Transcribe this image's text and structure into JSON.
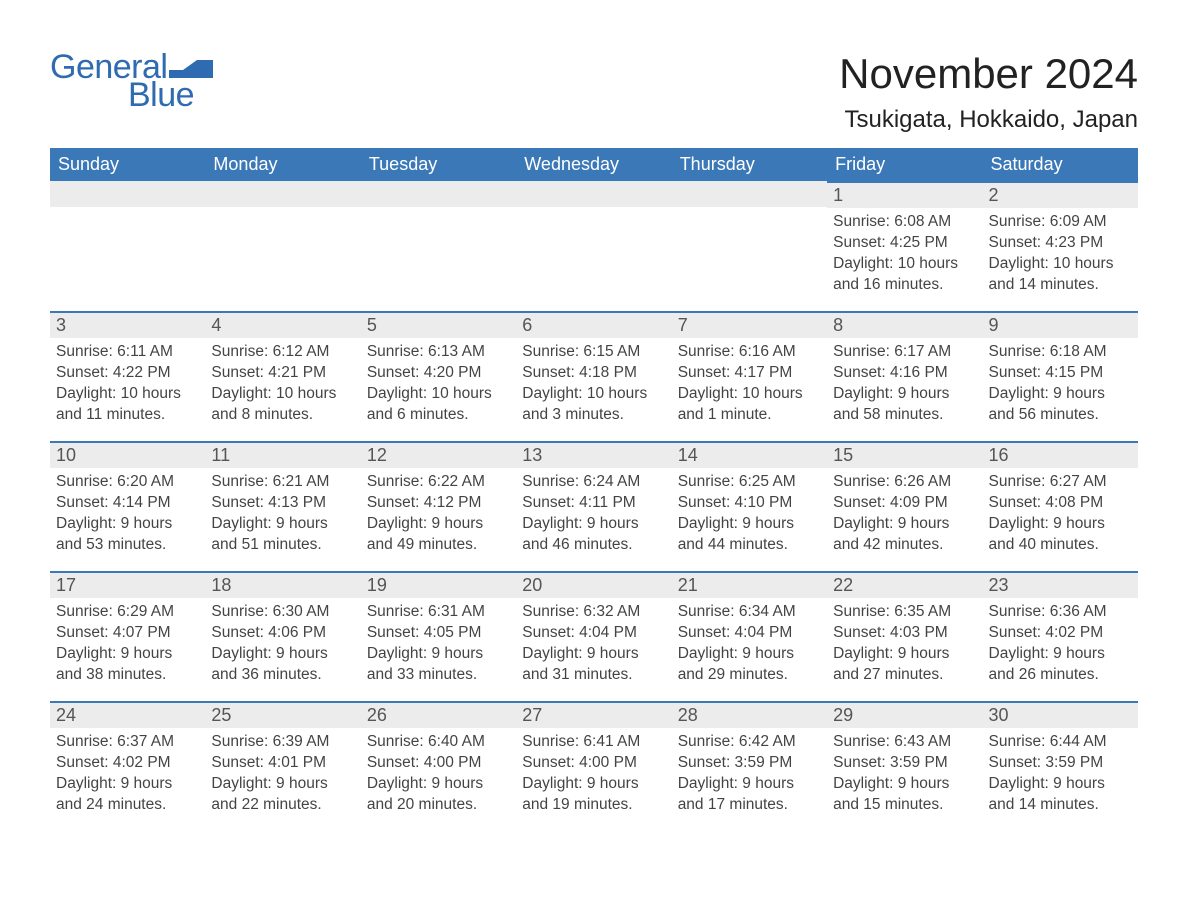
{
  "logo": {
    "text1": "General",
    "text2": "Blue"
  },
  "title": "November 2024",
  "location": "Tsukigata, Hokkaido, Japan",
  "colors": {
    "header_bg": "#3b78b8",
    "header_text": "#ffffff",
    "daynum_bg": "#ececec",
    "border_top": "#3b78b8",
    "logo_color": "#2e6bb0",
    "body_text": "#444444"
  },
  "weekdays": [
    "Sunday",
    "Monday",
    "Tuesday",
    "Wednesday",
    "Thursday",
    "Friday",
    "Saturday"
  ],
  "weeks": [
    [
      null,
      null,
      null,
      null,
      null,
      {
        "n": "1",
        "sr": "Sunrise: 6:08 AM",
        "ss": "Sunset: 4:25 PM",
        "d1": "Daylight: 10 hours",
        "d2": "and 16 minutes."
      },
      {
        "n": "2",
        "sr": "Sunrise: 6:09 AM",
        "ss": "Sunset: 4:23 PM",
        "d1": "Daylight: 10 hours",
        "d2": "and 14 minutes."
      }
    ],
    [
      {
        "n": "3",
        "sr": "Sunrise: 6:11 AM",
        "ss": "Sunset: 4:22 PM",
        "d1": "Daylight: 10 hours",
        "d2": "and 11 minutes."
      },
      {
        "n": "4",
        "sr": "Sunrise: 6:12 AM",
        "ss": "Sunset: 4:21 PM",
        "d1": "Daylight: 10 hours",
        "d2": "and 8 minutes."
      },
      {
        "n": "5",
        "sr": "Sunrise: 6:13 AM",
        "ss": "Sunset: 4:20 PM",
        "d1": "Daylight: 10 hours",
        "d2": "and 6 minutes."
      },
      {
        "n": "6",
        "sr": "Sunrise: 6:15 AM",
        "ss": "Sunset: 4:18 PM",
        "d1": "Daylight: 10 hours",
        "d2": "and 3 minutes."
      },
      {
        "n": "7",
        "sr": "Sunrise: 6:16 AM",
        "ss": "Sunset: 4:17 PM",
        "d1": "Daylight: 10 hours",
        "d2": "and 1 minute."
      },
      {
        "n": "8",
        "sr": "Sunrise: 6:17 AM",
        "ss": "Sunset: 4:16 PM",
        "d1": "Daylight: 9 hours",
        "d2": "and 58 minutes."
      },
      {
        "n": "9",
        "sr": "Sunrise: 6:18 AM",
        "ss": "Sunset: 4:15 PM",
        "d1": "Daylight: 9 hours",
        "d2": "and 56 minutes."
      }
    ],
    [
      {
        "n": "10",
        "sr": "Sunrise: 6:20 AM",
        "ss": "Sunset: 4:14 PM",
        "d1": "Daylight: 9 hours",
        "d2": "and 53 minutes."
      },
      {
        "n": "11",
        "sr": "Sunrise: 6:21 AM",
        "ss": "Sunset: 4:13 PM",
        "d1": "Daylight: 9 hours",
        "d2": "and 51 minutes."
      },
      {
        "n": "12",
        "sr": "Sunrise: 6:22 AM",
        "ss": "Sunset: 4:12 PM",
        "d1": "Daylight: 9 hours",
        "d2": "and 49 minutes."
      },
      {
        "n": "13",
        "sr": "Sunrise: 6:24 AM",
        "ss": "Sunset: 4:11 PM",
        "d1": "Daylight: 9 hours",
        "d2": "and 46 minutes."
      },
      {
        "n": "14",
        "sr": "Sunrise: 6:25 AM",
        "ss": "Sunset: 4:10 PM",
        "d1": "Daylight: 9 hours",
        "d2": "and 44 minutes."
      },
      {
        "n": "15",
        "sr": "Sunrise: 6:26 AM",
        "ss": "Sunset: 4:09 PM",
        "d1": "Daylight: 9 hours",
        "d2": "and 42 minutes."
      },
      {
        "n": "16",
        "sr": "Sunrise: 6:27 AM",
        "ss": "Sunset: 4:08 PM",
        "d1": "Daylight: 9 hours",
        "d2": "and 40 minutes."
      }
    ],
    [
      {
        "n": "17",
        "sr": "Sunrise: 6:29 AM",
        "ss": "Sunset: 4:07 PM",
        "d1": "Daylight: 9 hours",
        "d2": "and 38 minutes."
      },
      {
        "n": "18",
        "sr": "Sunrise: 6:30 AM",
        "ss": "Sunset: 4:06 PM",
        "d1": "Daylight: 9 hours",
        "d2": "and 36 minutes."
      },
      {
        "n": "19",
        "sr": "Sunrise: 6:31 AM",
        "ss": "Sunset: 4:05 PM",
        "d1": "Daylight: 9 hours",
        "d2": "and 33 minutes."
      },
      {
        "n": "20",
        "sr": "Sunrise: 6:32 AM",
        "ss": "Sunset: 4:04 PM",
        "d1": "Daylight: 9 hours",
        "d2": "and 31 minutes."
      },
      {
        "n": "21",
        "sr": "Sunrise: 6:34 AM",
        "ss": "Sunset: 4:04 PM",
        "d1": "Daylight: 9 hours",
        "d2": "and 29 minutes."
      },
      {
        "n": "22",
        "sr": "Sunrise: 6:35 AM",
        "ss": "Sunset: 4:03 PM",
        "d1": "Daylight: 9 hours",
        "d2": "and 27 minutes."
      },
      {
        "n": "23",
        "sr": "Sunrise: 6:36 AM",
        "ss": "Sunset: 4:02 PM",
        "d1": "Daylight: 9 hours",
        "d2": "and 26 minutes."
      }
    ],
    [
      {
        "n": "24",
        "sr": "Sunrise: 6:37 AM",
        "ss": "Sunset: 4:02 PM",
        "d1": "Daylight: 9 hours",
        "d2": "and 24 minutes."
      },
      {
        "n": "25",
        "sr": "Sunrise: 6:39 AM",
        "ss": "Sunset: 4:01 PM",
        "d1": "Daylight: 9 hours",
        "d2": "and 22 minutes."
      },
      {
        "n": "26",
        "sr": "Sunrise: 6:40 AM",
        "ss": "Sunset: 4:00 PM",
        "d1": "Daylight: 9 hours",
        "d2": "and 20 minutes."
      },
      {
        "n": "27",
        "sr": "Sunrise: 6:41 AM",
        "ss": "Sunset: 4:00 PM",
        "d1": "Daylight: 9 hours",
        "d2": "and 19 minutes."
      },
      {
        "n": "28",
        "sr": "Sunrise: 6:42 AM",
        "ss": "Sunset: 3:59 PM",
        "d1": "Daylight: 9 hours",
        "d2": "and 17 minutes."
      },
      {
        "n": "29",
        "sr": "Sunrise: 6:43 AM",
        "ss": "Sunset: 3:59 PM",
        "d1": "Daylight: 9 hours",
        "d2": "and 15 minutes."
      },
      {
        "n": "30",
        "sr": "Sunrise: 6:44 AM",
        "ss": "Sunset: 3:59 PM",
        "d1": "Daylight: 9 hours",
        "d2": "and 14 minutes."
      }
    ]
  ]
}
